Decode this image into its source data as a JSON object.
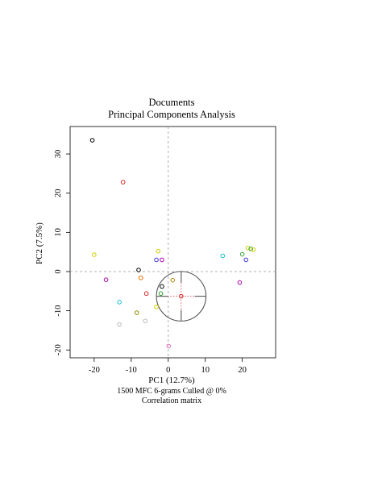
{
  "chart_data": {
    "type": "scatter",
    "title": "Documents",
    "subtitle": "Principal Components Analysis",
    "xlabel": "PC1 (12.7%)",
    "ylabel": "PC2 (7.5%)",
    "caption_lines": [
      "1500 MFC 6-grams Culled @ 0%",
      "Correlation matrix"
    ],
    "xlim": [
      -26.5,
      29
    ],
    "ylim": [
      -22,
      37
    ],
    "xticks": [
      -20,
      -10,
      0,
      10,
      20
    ],
    "xtick_labels": [
      "-20",
      "-10",
      "0",
      "10",
      "20"
    ],
    "yticks": [
      -20,
      -10,
      0,
      10,
      20,
      30
    ],
    "ytick_labels": [
      "-20",
      "-10",
      "0",
      "10",
      "20",
      "30"
    ],
    "grid": false,
    "reference_lines": {
      "x": 0,
      "y": 0,
      "style": "dashed",
      "color": "#999999"
    },
    "highlight": {
      "x": 3.5,
      "y": -6.3,
      "radius": 6.5,
      "color": "#555555",
      "marker_color": "#d62728"
    },
    "points": [
      {
        "x": -20.5,
        "y": 33.5,
        "color": "#000000"
      },
      {
        "x": -12.2,
        "y": 22.8,
        "color": "#d62728"
      },
      {
        "x": -20.0,
        "y": 4.3,
        "color": "#cdcd00"
      },
      {
        "x": -16.8,
        "y": -2.1,
        "color": "#b000b0"
      },
      {
        "x": -13.2,
        "y": -7.8,
        "color": "#17becf"
      },
      {
        "x": -13.2,
        "y": -13.5,
        "color": "#bbbbbb"
      },
      {
        "x": -8.0,
        "y": 0.4,
        "color": "#000000"
      },
      {
        "x": -7.4,
        "y": -1.6,
        "color": "#e07000"
      },
      {
        "x": -5.9,
        "y": -5.6,
        "color": "#d62728"
      },
      {
        "x": -8.5,
        "y": -10.5,
        "color": "#8b8b00"
      },
      {
        "x": -6.2,
        "y": -12.6,
        "color": "#bbbbbb"
      },
      {
        "x": -2.7,
        "y": 5.2,
        "color": "#cdcd00"
      },
      {
        "x": -3.2,
        "y": 3.0,
        "color": "#3a3ad0"
      },
      {
        "x": -1.7,
        "y": 3.0,
        "color": "#b000b0"
      },
      {
        "x": -1.7,
        "y": -3.8,
        "color": "#000000"
      },
      {
        "x": -2.0,
        "y": -5.6,
        "color": "#2ca02c"
      },
      {
        "x": -3.2,
        "y": -9.0,
        "color": "#cdcd00"
      },
      {
        "x": 1.2,
        "y": -2.2,
        "color": "#b8860b"
      },
      {
        "x": 0.1,
        "y": -19.0,
        "color": "#e377c2"
      },
      {
        "x": 3.5,
        "y": -6.3,
        "color": "#d62728"
      },
      {
        "x": 14.7,
        "y": 4.0,
        "color": "#17becf"
      },
      {
        "x": 20.0,
        "y": 4.4,
        "color": "#2ca02c"
      },
      {
        "x": 21.5,
        "y": 6.0,
        "color": "#cdcd00"
      },
      {
        "x": 22.3,
        "y": 5.8,
        "color": "#2ca02c"
      },
      {
        "x": 23.0,
        "y": 5.6,
        "color": "#cdcd00"
      },
      {
        "x": 21.0,
        "y": 3.0,
        "color": "#3a3ad0"
      },
      {
        "x": 19.3,
        "y": -2.8,
        "color": "#b000b0"
      }
    ]
  }
}
